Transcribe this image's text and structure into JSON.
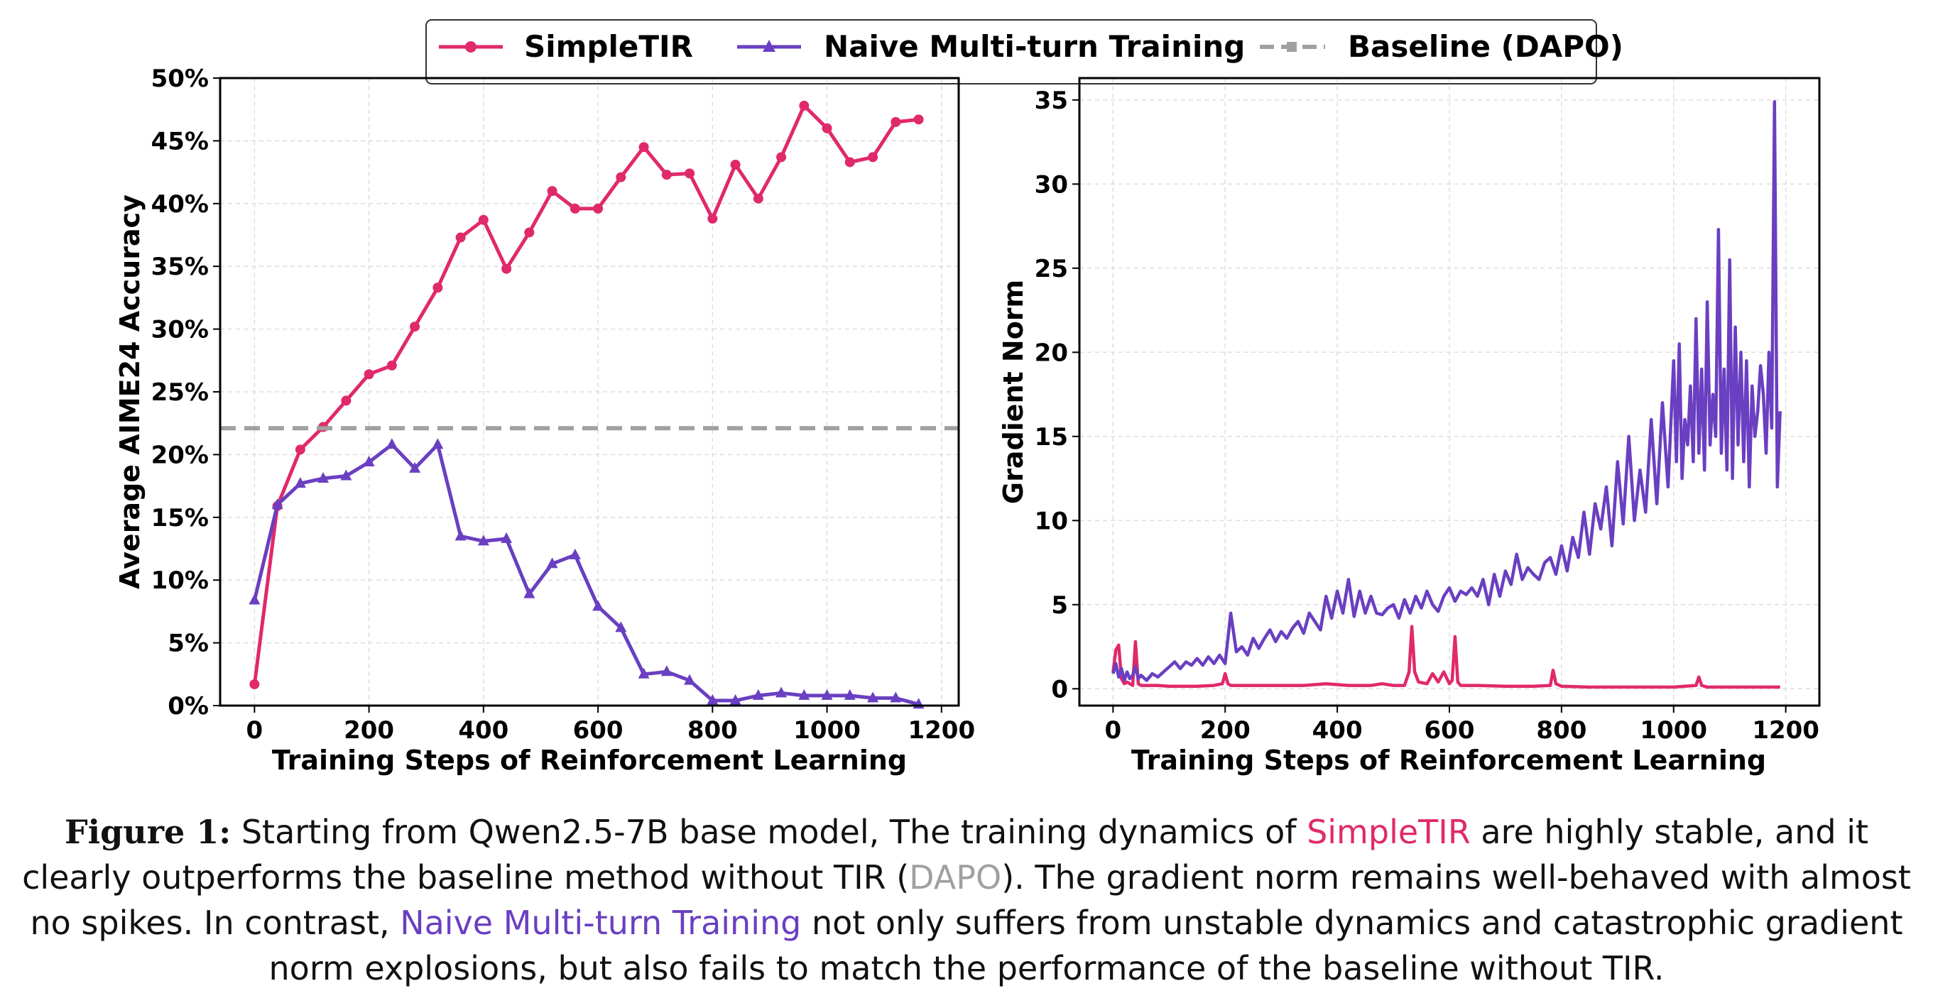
{
  "legend": [
    {
      "label": "SimpleTIR",
      "color": "#e0296b",
      "marker": "circle",
      "style": "solid"
    },
    {
      "label": "Naive Multi-turn Training",
      "color": "#6a3fc1",
      "marker": "triangle",
      "style": "solid"
    },
    {
      "label": "Baseline (DAPO)",
      "color": "#a0a0a0",
      "marker": "square",
      "style": "dashed"
    }
  ],
  "chart_data": [
    {
      "type": "line",
      "xlabel": "Training Steps of Reinforcement Learning",
      "ylabel": "Average AIME24 Accuracy",
      "xlim": [
        -60,
        1230
      ],
      "ylim": [
        0,
        50
      ],
      "xticks": [
        "0",
        "200",
        "400",
        "600",
        "800",
        "1000",
        "1200"
      ],
      "yticks": [
        "0%",
        "5%",
        "10%",
        "15%",
        "20%",
        "25%",
        "30%",
        "35%",
        "40%",
        "45%",
        "50%"
      ],
      "grid": true,
      "series": [
        {
          "name": "SimpleTIR",
          "color": "#e0296b",
          "x": [
            0,
            40,
            80,
            120,
            160,
            200,
            240,
            280,
            320,
            360,
            400,
            440,
            480,
            520,
            560,
            600,
            640,
            680,
            720,
            760,
            800,
            840,
            880,
            920,
            960,
            1000,
            1040,
            1080,
            1120,
            1160
          ],
          "y": [
            1.7,
            15.9,
            20.4,
            22.2,
            24.3,
            26.4,
            27.1,
            30.2,
            33.3,
            37.3,
            38.7,
            34.8,
            37.7,
            41.0,
            39.6,
            39.6,
            42.1,
            44.5,
            42.3,
            42.4,
            38.8,
            43.1,
            40.4,
            43.7,
            47.8,
            46.0,
            43.3,
            43.7,
            46.5,
            46.7
          ]
        },
        {
          "name": "Naive Multi-turn Training",
          "color": "#6a3fc1",
          "x": [
            0,
            40,
            80,
            120,
            160,
            200,
            240,
            280,
            320,
            360,
            400,
            440,
            480,
            520,
            560,
            600,
            640,
            680,
            720,
            760,
            800,
            840,
            880,
            920,
            960,
            1000,
            1040,
            1080,
            1120,
            1160
          ],
          "y": [
            8.4,
            16.0,
            17.7,
            18.1,
            18.3,
            19.4,
            20.8,
            18.9,
            20.8,
            13.5,
            13.1,
            13.3,
            8.9,
            11.3,
            12.0,
            7.9,
            6.2,
            2.5,
            2.7,
            2.0,
            0.4,
            0.4,
            0.8,
            1.0,
            0.8,
            0.8,
            0.8,
            0.6,
            0.6,
            0.1
          ]
        },
        {
          "name": "Baseline (DAPO)",
          "color": "#a0a0a0",
          "constant": 22.1
        }
      ]
    },
    {
      "type": "line",
      "xlabel": "Training Steps of Reinforcement Learning",
      "ylabel": "Gradient Norm",
      "xlim": [
        -60,
        1260
      ],
      "ylim": [
        -1,
        36.3
      ],
      "xticks": [
        "0",
        "200",
        "400",
        "600",
        "800",
        "1000",
        "1200"
      ],
      "yticks": [
        "0",
        "5",
        "10",
        "15",
        "20",
        "25",
        "30",
        "35"
      ],
      "grid": true,
      "series": [
        {
          "name": "SimpleTIR",
          "color": "#e0296b",
          "x": [
            0,
            5,
            10,
            15,
            20,
            25,
            30,
            35,
            40,
            45,
            50,
            60,
            80,
            100,
            120,
            150,
            180,
            195,
            200,
            205,
            210,
            230,
            260,
            300,
            340,
            380,
            420,
            460,
            480,
            500,
            520,
            528,
            533,
            538,
            545,
            560,
            570,
            580,
            590,
            600,
            605,
            610,
            615,
            620,
            650,
            700,
            750,
            780,
            785,
            790,
            800,
            850,
            900,
            950,
            1000,
            1040,
            1045,
            1050,
            1060,
            1100,
            1150,
            1190
          ],
          "y": [
            1.0,
            2.3,
            2.6,
            0.6,
            0.3,
            0.4,
            0.3,
            0.2,
            2.8,
            0.3,
            0.2,
            0.2,
            0.2,
            0.15,
            0.15,
            0.15,
            0.2,
            0.3,
            0.9,
            0.3,
            0.2,
            0.2,
            0.2,
            0.2,
            0.2,
            0.3,
            0.2,
            0.2,
            0.3,
            0.2,
            0.2,
            1.0,
            3.7,
            1.0,
            0.4,
            0.3,
            0.9,
            0.4,
            1.0,
            0.3,
            0.5,
            3.1,
            0.4,
            0.2,
            0.2,
            0.15,
            0.15,
            0.2,
            1.1,
            0.3,
            0.15,
            0.1,
            0.1,
            0.1,
            0.1,
            0.2,
            0.7,
            0.2,
            0.1,
            0.1,
            0.1,
            0.1
          ]
        },
        {
          "name": "Naive Multi-turn Training",
          "color": "#6a3fc1",
          "x": [
            0,
            5,
            10,
            15,
            20,
            25,
            30,
            35,
            40,
            45,
            50,
            60,
            70,
            80,
            90,
            100,
            110,
            120,
            130,
            140,
            150,
            160,
            170,
            180,
            190,
            200,
            210,
            220,
            230,
            240,
            250,
            260,
            270,
            280,
            290,
            300,
            310,
            320,
            330,
            340,
            350,
            360,
            370,
            380,
            390,
            400,
            410,
            420,
            430,
            440,
            450,
            460,
            470,
            480,
            490,
            500,
            510,
            520,
            530,
            540,
            550,
            560,
            570,
            580,
            590,
            600,
            610,
            620,
            630,
            640,
            650,
            660,
            670,
            680,
            690,
            700,
            710,
            720,
            730,
            740,
            750,
            760,
            770,
            780,
            790,
            800,
            810,
            820,
            830,
            840,
            850,
            860,
            870,
            880,
            890,
            900,
            910,
            920,
            930,
            940,
            950,
            960,
            970,
            980,
            990,
            1000,
            1005,
            1010,
            1015,
            1020,
            1025,
            1030,
            1035,
            1040,
            1045,
            1050,
            1055,
            1060,
            1065,
            1070,
            1075,
            1080,
            1085,
            1090,
            1095,
            1100,
            1105,
            1110,
            1115,
            1120,
            1125,
            1130,
            1135,
            1140,
            1145,
            1150,
            1155,
            1160,
            1165,
            1170,
            1175,
            1180,
            1185,
            1190
          ],
          "y": [
            0.9,
            1.5,
            0.7,
            1.2,
            0.5,
            1.0,
            0.6,
            0.8,
            1.3,
            0.6,
            0.8,
            0.5,
            0.9,
            0.7,
            1.0,
            1.3,
            1.6,
            1.2,
            1.6,
            1.4,
            1.8,
            1.4,
            1.9,
            1.5,
            2.0,
            1.5,
            4.5,
            2.2,
            2.5,
            2.0,
            3.0,
            2.4,
            3.0,
            3.5,
            2.8,
            3.4,
            3.0,
            3.6,
            4.0,
            3.3,
            4.5,
            4.0,
            3.5,
            5.5,
            4.2,
            5.8,
            4.5,
            6.5,
            4.3,
            5.8,
            4.5,
            5.5,
            4.5,
            4.4,
            4.8,
            5.0,
            4.2,
            5.3,
            4.5,
            5.5,
            4.8,
            5.8,
            5.0,
            4.6,
            5.5,
            6.0,
            5.2,
            5.8,
            5.6,
            6.0,
            5.5,
            6.5,
            5.0,
            6.8,
            5.5,
            7.0,
            6.2,
            8.0,
            6.5,
            7.2,
            6.8,
            6.5,
            7.5,
            7.8,
            6.8,
            8.5,
            7.0,
            9.0,
            7.8,
            10.5,
            8.0,
            11.0,
            9.5,
            12.0,
            8.5,
            13.5,
            9.8,
            15.0,
            10.0,
            13.0,
            10.5,
            16.0,
            11.0,
            17.0,
            12.0,
            19.5,
            13.5,
            20.5,
            12.5,
            16.0,
            14.5,
            18.0,
            13.5,
            22.0,
            14.0,
            19.0,
            13.0,
            23.0,
            14.5,
            17.5,
            15.0,
            27.3,
            14.0,
            19.0,
            13.0,
            25.5,
            12.5,
            21.5,
            14.5,
            20.0,
            13.5,
            19.5,
            12.0,
            18.0,
            15.0,
            16.5,
            19.2,
            17.5,
            14.0,
            20.0,
            15.5,
            34.9,
            12.0,
            16.5
          ]
        }
      ]
    }
  ],
  "caption": {
    "label": "Figure 1:",
    "p1": " Starting from Qwen2.5-7B base model, The training dynamics of ",
    "simple": "SimpleTIR",
    "p2": " are highly stable, and it clearly outperforms the baseline method without TIR (",
    "dapo": "DAPO",
    "p3": "). The gradient norm remains well-behaved with almost no spikes. In contrast, ",
    "naive": "Naive Multi-turn Training",
    "p4": " not only suffers from unstable dynamics and catastrophic gradient norm explosions, but also fails to match the performance of the baseline without TIR."
  }
}
